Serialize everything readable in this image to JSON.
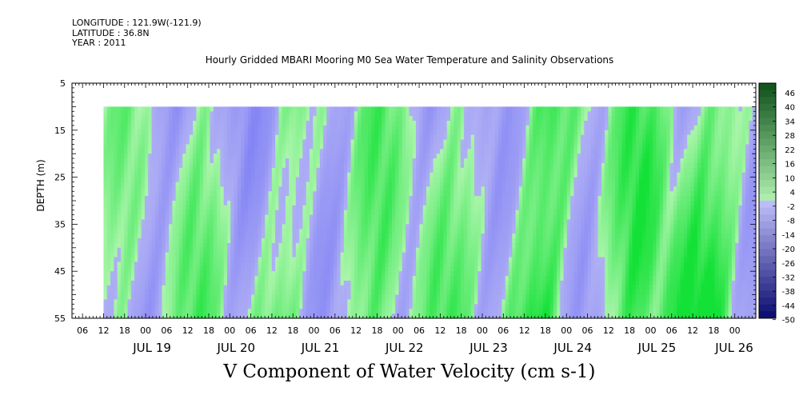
{
  "header": {
    "longitude": "LONGITUDE : 121.9W(-121.9)",
    "latitude": "LATITUDE : 36.8N",
    "year": "YEAR : 2011"
  },
  "chart_data": {
    "type": "heatmap",
    "title": "Hourly Gridded MBARI Mooring M0 Sea Water Temperature and Salinity Observations",
    "xlabel": "V Component of Water Velocity (cm s-1)",
    "ylabel": "DEPTH (m)",
    "y_axis": {
      "range": [
        5,
        55
      ],
      "inverted": true,
      "ticks": [
        5,
        15,
        25,
        35,
        45,
        55
      ]
    },
    "x_axis": {
      "range": [
        "2011-07-18T03:00",
        "2011-07-26T06:00"
      ],
      "hour_ticks": [
        "06",
        "12",
        "18",
        "00",
        "06",
        "12",
        "18",
        "00",
        "06",
        "12",
        "18",
        "00",
        "06",
        "12",
        "18",
        "00",
        "06",
        "12",
        "18",
        "00",
        "06",
        "12",
        "18",
        "00",
        "06",
        "12",
        "18",
        "00",
        "06",
        "12",
        "18",
        "00",
        "06",
        "12",
        "18",
        "00"
      ],
      "day_labels": [
        "JUL 19",
        "JUL 20",
        "JUL 21",
        "JUL 22",
        "JUL 23",
        "JUL 24",
        "JUL 25",
        "JUL 26"
      ]
    },
    "data_range": {
      "time": [
        "2011-07-18T12:00",
        "2011-07-26T06:00"
      ],
      "depth": [
        10,
        55
      ]
    },
    "colorbar": {
      "labels": [
        "46",
        "40",
        "34",
        "28",
        "22",
        "16",
        "10",
        "4",
        "-2",
        "-8",
        "-14",
        "-20",
        "-26",
        "-32",
        "-38",
        "-44",
        "-50"
      ],
      "min": -50,
      "max": 52,
      "step": 3
    },
    "colors": {
      "negative": "#9b9bf0",
      "positive": "#8ef08e",
      "strong_positive": "#19e43a"
    }
  }
}
